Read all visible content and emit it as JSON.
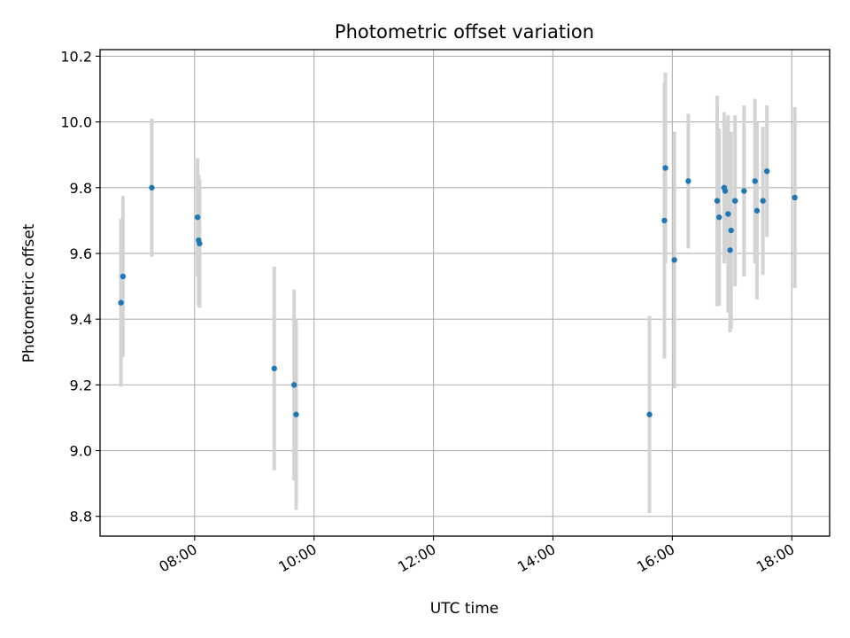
{
  "chart_data": {
    "type": "scatter",
    "title": "Photometric offset variation",
    "xlabel": "UTC time",
    "ylabel": "Photometric offset",
    "xlim": [
      "06:25",
      "18:38"
    ],
    "ylim": [
      8.74,
      10.22
    ],
    "grid": true,
    "x_ticks": [
      "08:00",
      "10:00",
      "12:00",
      "14:00",
      "16:00",
      "18:00"
    ],
    "y_ticks": [
      "8.8",
      "9.0",
      "9.2",
      "9.4",
      "9.6",
      "9.8",
      "10.0",
      "10.2"
    ],
    "colors": {
      "point": "#1f77b4",
      "errorbar": "#d3d3d3",
      "grid": "#b0b0b0",
      "axes": "#000000"
    },
    "points": [
      {
        "x": "06:46",
        "y": 9.45,
        "yerr": 0.255
      },
      {
        "x": "06:48",
        "y": 9.53,
        "yerr": 0.245
      },
      {
        "x": "07:17",
        "y": 9.8,
        "yerr": 0.21
      },
      {
        "x": "08:03",
        "y": 9.71,
        "yerr": 0.18
      },
      {
        "x": "08:04",
        "y": 9.64,
        "yerr": 0.2
      },
      {
        "x": "08:05",
        "y": 9.63,
        "yerr": 0.195
      },
      {
        "x": "09:20",
        "y": 9.25,
        "yerr": 0.31
      },
      {
        "x": "09:40",
        "y": 9.2,
        "yerr": 0.29
      },
      {
        "x": "09:42",
        "y": 9.11,
        "yerr": 0.29
      },
      {
        "x": "15:37",
        "y": 9.11,
        "yerr": 0.3
      },
      {
        "x": "15:52",
        "y": 9.7,
        "yerr": 0.42
      },
      {
        "x": "15:53",
        "y": 9.86,
        "yerr": 0.29
      },
      {
        "x": "16:02",
        "y": 9.58,
        "yerr": 0.39
      },
      {
        "x": "16:16",
        "y": 9.82,
        "yerr": 0.205
      },
      {
        "x": "16:45",
        "y": 9.76,
        "yerr": 0.32
      },
      {
        "x": "16:47",
        "y": 9.71,
        "yerr": 0.27
      },
      {
        "x": "16:52",
        "y": 9.8,
        "yerr": 0.23
      },
      {
        "x": "16:53",
        "y": 9.79,
        "yerr": 0.2
      },
      {
        "x": "16:56",
        "y": 9.72,
        "yerr": 0.3
      },
      {
        "x": "16:58",
        "y": 9.61,
        "yerr": 0.25
      },
      {
        "x": "16:59",
        "y": 9.67,
        "yerr": 0.3
      },
      {
        "x": "17:03",
        "y": 9.76,
        "yerr": 0.26
      },
      {
        "x": "17:12",
        "y": 9.79,
        "yerr": 0.26
      },
      {
        "x": "17:23",
        "y": 9.82,
        "yerr": 0.25
      },
      {
        "x": "17:25",
        "y": 9.73,
        "yerr": 0.27
      },
      {
        "x": "17:31",
        "y": 9.76,
        "yerr": 0.225
      },
      {
        "x": "17:35",
        "y": 9.85,
        "yerr": 0.2
      },
      {
        "x": "18:03",
        "y": 9.77,
        "yerr": 0.275
      }
    ]
  }
}
